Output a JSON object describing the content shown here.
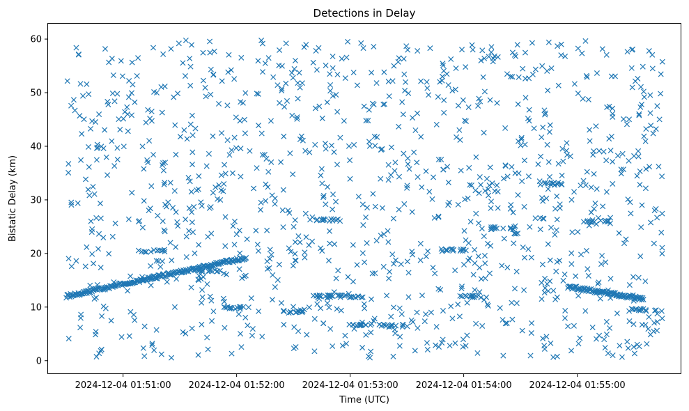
{
  "chart_data": {
    "type": "scatter",
    "title": "Detections in Delay",
    "xlabel": "Time (UTC)",
    "ylabel": "Bistatic Delay (km)",
    "marker": "x",
    "color": "#1f77b4",
    "grid": false,
    "x_range": [
      "2024-12-04 01:50:30",
      "2024-12-04 01:55:45"
    ],
    "xlim": [
      "2024-12-04 01:50:20",
      "2024-12-04 01:55:55"
    ],
    "ylim": [
      -2.5,
      63
    ],
    "x_ticks": [
      "2024-12-04 01:51:00",
      "2024-12-04 01:52:00",
      "2024-12-04 01:53:00",
      "2024-12-04 01:54:00",
      "2024-12-04 01:55:00"
    ],
    "y_ticks": [
      0,
      10,
      20,
      30,
      40,
      50,
      60
    ],
    "tracks": [
      {
        "start": [
          "2024-12-04 01:50:30",
          12.0
        ],
        "end": [
          "2024-12-04 01:52:05",
          19.2
        ]
      },
      {
        "start": [
          "2024-12-04 01:54:55",
          13.8
        ],
        "end": [
          "2024-12-04 01:55:35",
          11.5
        ]
      }
    ],
    "clusters": [
      {
        "x": "2024-12-04 01:51:15",
        "y": 20.5
      },
      {
        "x": "2024-12-04 01:51:45",
        "y": 16.8
      },
      {
        "x": "2024-12-04 01:52:00",
        "y": 9.8
      },
      {
        "x": "2024-12-04 01:52:30",
        "y": 9.2
      },
      {
        "x": "2024-12-04 01:52:45",
        "y": 12.0
      },
      {
        "x": "2024-12-04 01:52:48",
        "y": 26.2
      },
      {
        "x": "2024-12-04 01:53:00",
        "y": 12.0
      },
      {
        "x": "2024-12-04 01:53:05",
        "y": 6.7
      },
      {
        "x": "2024-12-04 01:53:25",
        "y": 6.5
      },
      {
        "x": "2024-12-04 01:53:55",
        "y": 20.6
      },
      {
        "x": "2024-12-04 01:54:05",
        "y": 12.0
      },
      {
        "x": "2024-12-04 01:54:20",
        "y": 24.7
      },
      {
        "x": "2024-12-04 01:54:45",
        "y": 33.0
      },
      {
        "x": "2024-12-04 01:55:10",
        "y": 26.0
      },
      {
        "x": "2024-12-04 01:55:35",
        "y": 9.5
      }
    ]
  }
}
